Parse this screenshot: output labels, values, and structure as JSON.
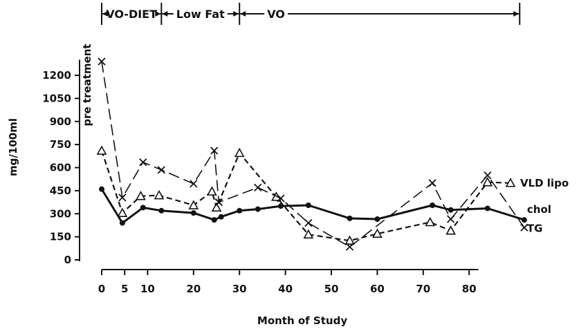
{
  "chart_data": {
    "type": "line",
    "title": "",
    "xlabel": "Month of Study",
    "ylabel": "mg/100ml",
    "xlim": [
      0,
      91
    ],
    "ylim": [
      0,
      1275
    ],
    "x_ticks": [
      0,
      5,
      10,
      20,
      30,
      40,
      50,
      60,
      70,
      80
    ],
    "y_ticks": [
      0,
      150,
      300,
      450,
      600,
      750,
      900,
      1050,
      1200
    ],
    "grid": false,
    "legend": "labels at line ends",
    "annotations": {
      "pre_treatment": "pre treatment",
      "phases": [
        {
          "label": "VO-DIET",
          "start": 0,
          "end": 13
        },
        {
          "label": "Low Fat",
          "start": 13,
          "end": 30
        },
        {
          "label": "VO",
          "start": 30,
          "end": 91
        }
      ]
    },
    "series": [
      {
        "name": "VLD lipo",
        "marker": "triangle",
        "style": "dashed",
        "color": "#111111",
        "points": [
          [
            0,
            710
          ],
          [
            4.5,
            305
          ],
          [
            8.5,
            415
          ],
          [
            12.5,
            420
          ],
          [
            20,
            355
          ],
          [
            24,
            445
          ],
          [
            25,
            340
          ],
          [
            30,
            695
          ],
          [
            38,
            410
          ],
          [
            45,
            165
          ],
          [
            54,
            125
          ],
          [
            60,
            170
          ],
          [
            71.5,
            245
          ],
          [
            76,
            190
          ],
          [
            84,
            505
          ],
          [
            89,
            500
          ]
        ]
      },
      {
        "name": "chol",
        "marker": "dot",
        "style": "solid",
        "color": "#111111",
        "points": [
          [
            0,
            460
          ],
          [
            4.5,
            240
          ],
          [
            9,
            340
          ],
          [
            13,
            320
          ],
          [
            20,
            305
          ],
          [
            24.5,
            260
          ],
          [
            26,
            280
          ],
          [
            30,
            320
          ],
          [
            34,
            330
          ],
          [
            39,
            350
          ],
          [
            45,
            355
          ],
          [
            54,
            270
          ],
          [
            60,
            265
          ],
          [
            72,
            355
          ],
          [
            76,
            325
          ],
          [
            84,
            335
          ],
          [
            92,
            260
          ]
        ]
      },
      {
        "name": "TG",
        "marker": "x",
        "style": "long-dash",
        "color": "#111111",
        "points": [
          [
            0,
            1290
          ],
          [
            4.5,
            405
          ],
          [
            9,
            635
          ],
          [
            13,
            585
          ],
          [
            20,
            495
          ],
          [
            24.5,
            710
          ],
          [
            25.5,
            375
          ],
          [
            34,
            470
          ],
          [
            39,
            400
          ],
          [
            45,
            240
          ],
          [
            54,
            85
          ],
          [
            72,
            500
          ],
          [
            76,
            265
          ],
          [
            84,
            550
          ],
          [
            92,
            210
          ]
        ]
      }
    ]
  }
}
